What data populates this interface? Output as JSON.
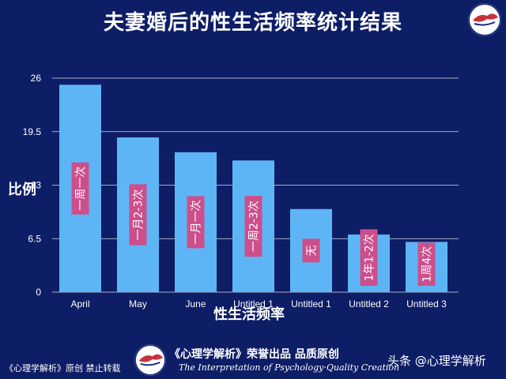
{
  "chart_data": {
    "type": "bar",
    "title": "夫妻婚后的性生活频率统计结果",
    "xlabel": "性生活频率",
    "ylabel": "比例",
    "categories": [
      "April",
      "May",
      "June",
      "Untitled 1",
      "Untitled 1",
      "Untitled 2",
      "Untitled 3"
    ],
    "values": [
      25.2,
      18.8,
      17.0,
      16.0,
      10.1,
      7.0,
      6.1
    ],
    "bar_labels": [
      "一周一次",
      "一月2-3次",
      "一月一次",
      "一周2-3次",
      "无",
      "1年1-2次",
      "1周4次"
    ],
    "yticks": [
      "0",
      "6.5",
      "13",
      "19.5",
      "26"
    ],
    "ylim": [
      0,
      26
    ],
    "grid": true,
    "legend": "none",
    "colors": {
      "bar": "#5eb5f5",
      "label_bg": "#cc4f8c",
      "background": "#0d1d66",
      "grid": "#ffffff"
    }
  },
  "footer": {
    "left": "《心理学解析》原创 禁止转载",
    "brand": "《心理学解析》荣誉出品 品质原创",
    "tagline": "The Interpretation of Psychology·Quality Creation"
  },
  "watermark": "头条 @心理学解析"
}
